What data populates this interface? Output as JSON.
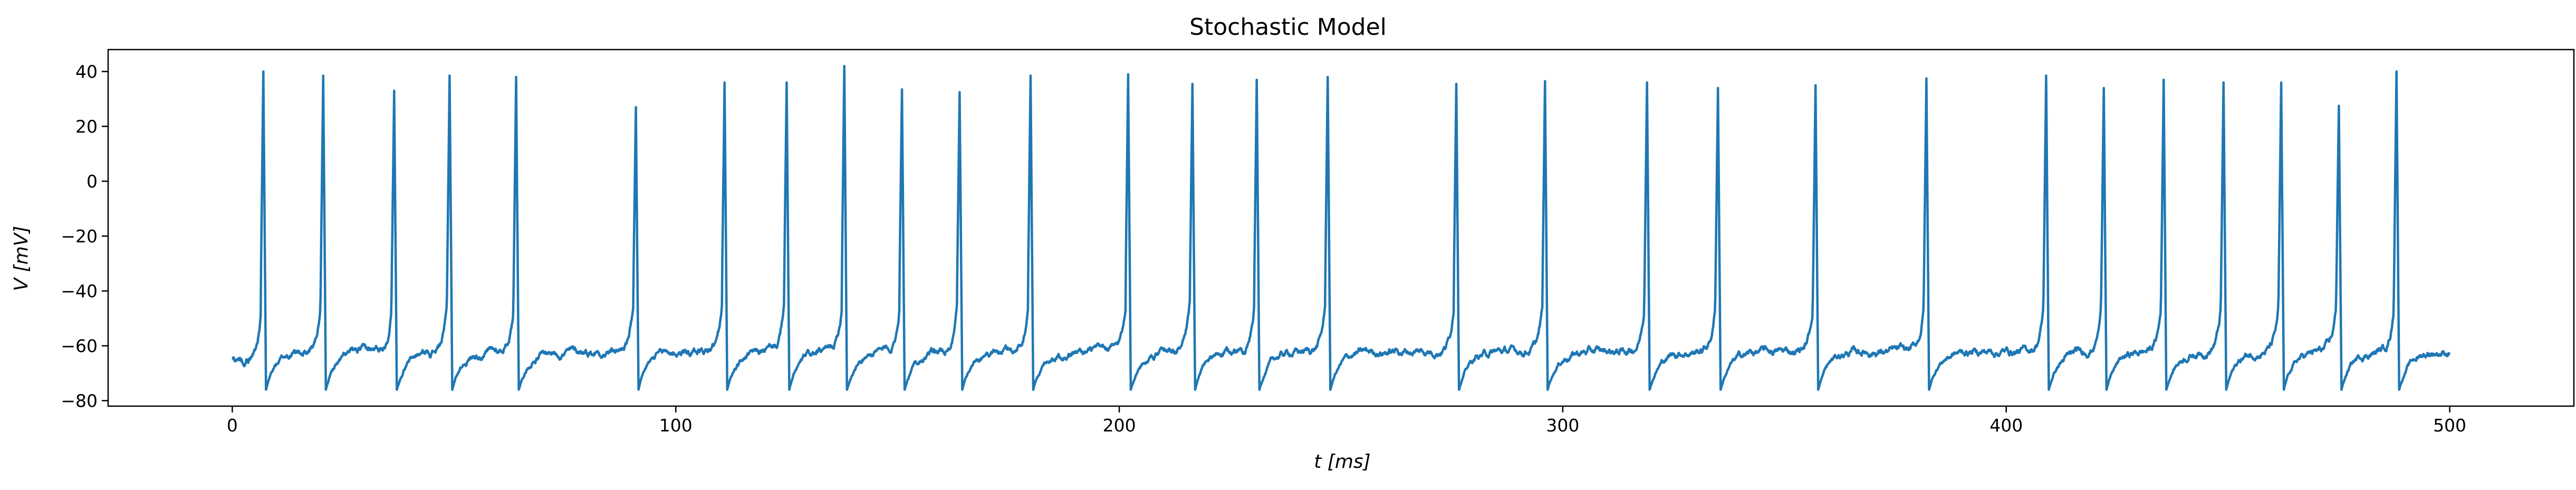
{
  "chart_data": {
    "type": "line",
    "title": "Stochastic Model",
    "xlabel": "t [ms]",
    "ylabel": "V [mV]",
    "xlim": [
      -28,
      528
    ],
    "ylim": [
      -82,
      48
    ],
    "xticks": [
      0,
      100,
      200,
      300,
      400,
      500
    ],
    "yticks": [
      -80,
      -60,
      -40,
      -20,
      0,
      20,
      40
    ],
    "grid": false,
    "series": [
      {
        "color": "#1f77b4",
        "resting_potential": -62,
        "reset_potential": -76,
        "spike_times": [
          7,
          20.5,
          36.5,
          49,
          64,
          91,
          111,
          125,
          138,
          151,
          164,
          180,
          202,
          216.5,
          231,
          247,
          276,
          296,
          319,
          335,
          357,
          382,
          409,
          422,
          435.5,
          449,
          462,
          475,
          488
        ],
        "spike_peaks": [
          40,
          38.5,
          33,
          38.5,
          38,
          27,
          36,
          36,
          42,
          33.5,
          32.5,
          38.5,
          39,
          35.5,
          37,
          38,
          35.5,
          36.5,
          36,
          34,
          35,
          37.5,
          38.5,
          34,
          37,
          36,
          36,
          27.5,
          40
        ],
        "x_start": 0,
        "x_end": 500
      }
    ]
  }
}
